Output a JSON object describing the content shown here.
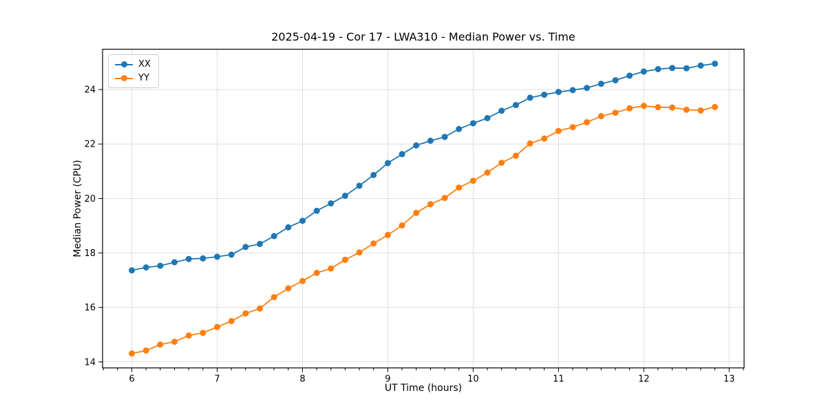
{
  "figure": {
    "title": "2025-04-19 - Cor 17 - LWA310 - Median Power vs. Time",
    "xlabel": "UT Time (hours)",
    "ylabel": "Median Power (CPU)"
  },
  "legend": {
    "location": "upper left",
    "items": [
      {
        "label": "XX",
        "color": "#1f77b4"
      },
      {
        "label": "YY",
        "color": "#ff7f0e"
      }
    ]
  },
  "axes": {
    "xlim": [
      5.657,
      13.175
    ],
    "ylim": [
      13.78,
      25.48
    ],
    "xticks": [
      6,
      7,
      8,
      9,
      10,
      11,
      12,
      13
    ],
    "yticks": [
      14,
      16,
      18,
      20,
      22,
      24
    ],
    "x_minor_step": 0.1666667,
    "grid": true,
    "grid_color": "#dddddd",
    "spine_color": "#000000"
  },
  "chart_data": {
    "type": "line",
    "title": "2025-04-19 - Cor 17 - LWA310 - Median Power vs. Time",
    "xlabel": "UT Time (hours)",
    "ylabel": "Median Power (CPU)",
    "xlim": [
      5.657,
      13.175
    ],
    "ylim": [
      13.78,
      25.48
    ],
    "grid": true,
    "legend_position": "upper left",
    "marker": "circle",
    "x": [
      6.0,
      6.167,
      6.333,
      6.5,
      6.667,
      6.833,
      7.0,
      7.167,
      7.333,
      7.5,
      7.667,
      7.833,
      8.0,
      8.167,
      8.333,
      8.5,
      8.667,
      8.833,
      9.0,
      9.167,
      9.333,
      9.5,
      9.667,
      9.833,
      10.0,
      10.167,
      10.333,
      10.5,
      10.667,
      10.833,
      11.0,
      11.167,
      11.333,
      11.5,
      11.667,
      11.833,
      12.0,
      12.167,
      12.333,
      12.5,
      12.667,
      12.833
    ],
    "series": [
      {
        "name": "XX",
        "color": "#1f77b4",
        "values": [
          17.36,
          17.47,
          17.53,
          17.66,
          17.78,
          17.8,
          17.86,
          17.94,
          18.22,
          18.33,
          18.62,
          18.94,
          19.18,
          19.55,
          19.82,
          20.1,
          20.47,
          20.86,
          21.3,
          21.63,
          21.95,
          22.12,
          22.26,
          22.55,
          22.76,
          22.95,
          23.22,
          23.43,
          23.7,
          23.81,
          23.91,
          23.98,
          24.06,
          24.21,
          24.34,
          24.51,
          24.66,
          24.75,
          24.79,
          24.78,
          24.88,
          24.95
        ]
      },
      {
        "name": "YY",
        "color": "#ff7f0e",
        "values": [
          14.31,
          14.42,
          14.64,
          14.74,
          14.97,
          15.07,
          15.28,
          15.5,
          15.78,
          15.96,
          16.38,
          16.7,
          16.97,
          17.27,
          17.43,
          17.75,
          18.02,
          18.35,
          18.66,
          19.01,
          19.47,
          19.79,
          20.02,
          20.4,
          20.65,
          20.95,
          21.31,
          21.57,
          22.02,
          22.2,
          22.48,
          22.62,
          22.8,
          23.02,
          23.15,
          23.31,
          23.4,
          23.35,
          23.34,
          23.26,
          23.23,
          23.36
        ]
      }
    ]
  }
}
